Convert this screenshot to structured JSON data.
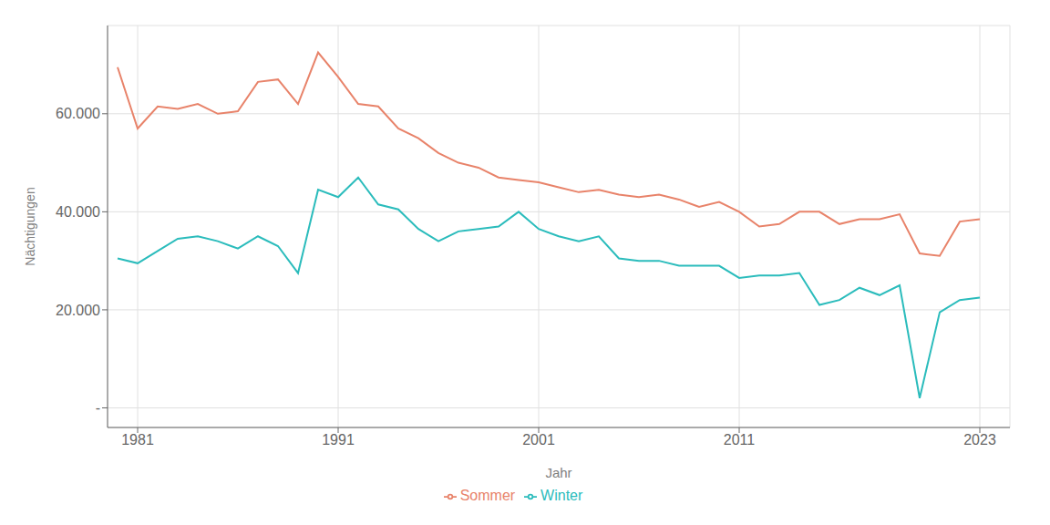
{
  "chart_data": {
    "type": "line",
    "xlabel": "Jahr",
    "ylabel": "Nächtigungen",
    "x": [
      1980,
      1981,
      1982,
      1983,
      1984,
      1985,
      1986,
      1987,
      1988,
      1989,
      1990,
      1991,
      1992,
      1993,
      1994,
      1995,
      1996,
      1997,
      1998,
      1999,
      2000,
      2001,
      2002,
      2003,
      2004,
      2005,
      2006,
      2007,
      2008,
      2009,
      2010,
      2011,
      2012,
      2013,
      2014,
      2015,
      2016,
      2017,
      2018,
      2019,
      2020,
      2021,
      2022,
      2023
    ],
    "series": [
      {
        "name": "Sommer",
        "color": "#E8836A",
        "values": [
          69500,
          57000,
          61500,
          61000,
          62000,
          60000,
          60500,
          66500,
          67000,
          62000,
          72500,
          67500,
          62000,
          61500,
          57000,
          55000,
          52000,
          50000,
          49000,
          47000,
          46500,
          46000,
          45000,
          44000,
          44500,
          43500,
          43000,
          43500,
          42500,
          41000,
          42000,
          40000,
          37000,
          37500,
          40000,
          40000,
          37500,
          38500,
          38500,
          39500,
          31500,
          31000,
          38000,
          38500
        ]
      },
      {
        "name": "Winter",
        "color": "#2BBCBC",
        "values": [
          30500,
          29500,
          32000,
          34500,
          35000,
          34000,
          32500,
          35000,
          33000,
          27500,
          44500,
          43000,
          47000,
          41500,
          40500,
          36500,
          34000,
          36000,
          36500,
          37000,
          40000,
          36500,
          35000,
          34000,
          35000,
          30500,
          30000,
          30000,
          29000,
          29000,
          29000,
          26500,
          27000,
          27000,
          27500,
          21000,
          22000,
          24500,
          23000,
          25000,
          2000,
          19500,
          22000,
          22500
        ]
      }
    ],
    "xlim": [
      1979.5,
      2024.5
    ],
    "xticks": [
      1981,
      1991,
      2001,
      2011,
      2023
    ],
    "ylim": [
      -4000,
      78000
    ],
    "yticks": [
      {
        "value": 0,
        "label": "-"
      },
      {
        "value": 20000,
        "label": "20.000"
      },
      {
        "value": 40000,
        "label": "40.000"
      },
      {
        "value": 60000,
        "label": "60.000"
      }
    ],
    "grid": true,
    "legend": "bottom"
  }
}
